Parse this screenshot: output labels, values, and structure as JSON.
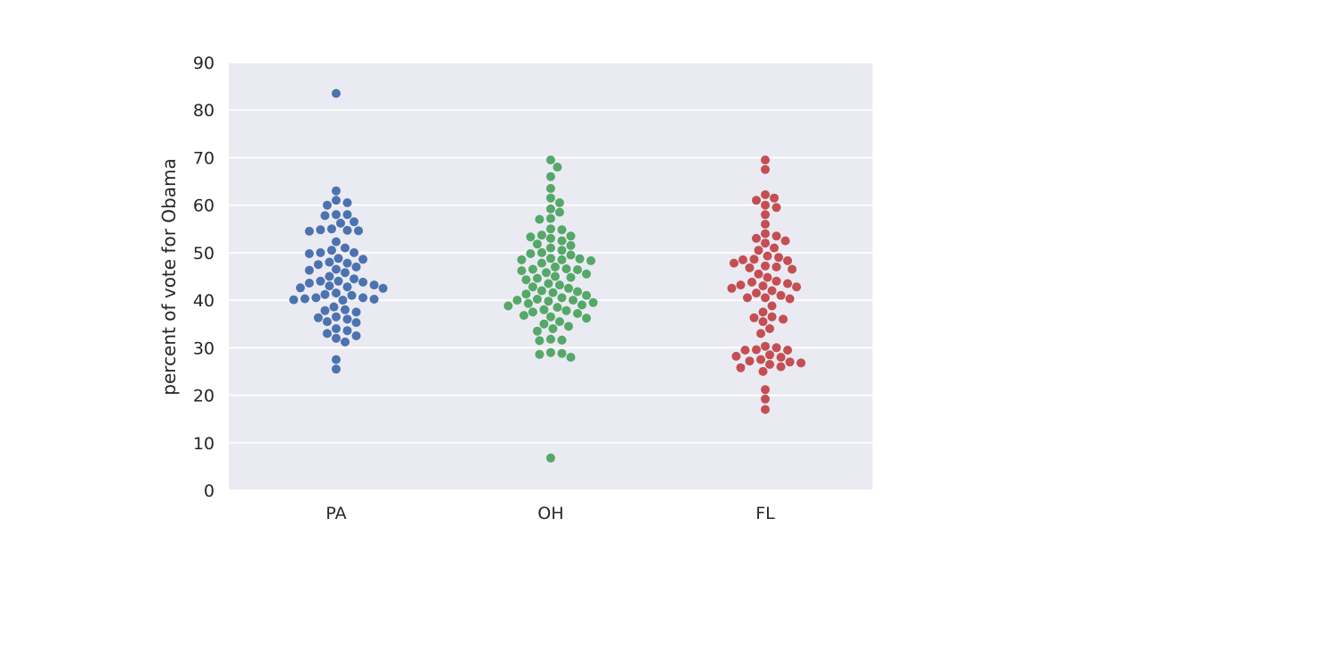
{
  "chart_data": {
    "type": "scatter",
    "subtype": "swarm",
    "title": "",
    "xlabel": "",
    "ylabel": "percent of vote for Obama",
    "categories": [
      "PA",
      "OH",
      "FL"
    ],
    "ylim": [
      0,
      90
    ],
    "yticks": [
      0,
      10,
      20,
      30,
      40,
      50,
      60,
      70,
      80,
      90
    ],
    "grid": true,
    "legend": "none",
    "colors": {
      "PA": "#4c72b0",
      "OH": "#55a868",
      "FL": "#c44e52"
    },
    "background": "#eaeaf2",
    "series": [
      {
        "category": "PA",
        "values": [
          83.5,
          63.0,
          61.0,
          60.5,
          60.0,
          58.0,
          58.0,
          57.8,
          56.5,
          56.2,
          55.0,
          54.8,
          54.7,
          54.6,
          54.5,
          52.3,
          51.0,
          50.5,
          50.0,
          50.0,
          49.8,
          48.8,
          48.6,
          48.0,
          47.8,
          47.5,
          47.0,
          46.5,
          46.3,
          45.8,
          45.0,
          44.5,
          44.0,
          44.0,
          43.8,
          43.6,
          43.2,
          43.0,
          42.8,
          42.6,
          42.5,
          41.5,
          41.2,
          41.0,
          40.5,
          40.5,
          40.3,
          40.2,
          40.1,
          40.0,
          38.6,
          38.0,
          37.8,
          37.5,
          36.5,
          36.3,
          36.0,
          35.5,
          35.3,
          34.0,
          33.6,
          33.0,
          32.5,
          32.0,
          31.2,
          27.5,
          25.5
        ]
      },
      {
        "category": "OH",
        "values": [
          69.5,
          68.0,
          66.0,
          63.5,
          61.5,
          60.5,
          59.2,
          58.5,
          57.2,
          57.0,
          55.0,
          54.8,
          53.7,
          53.5,
          53.3,
          53.0,
          52.5,
          51.8,
          51.5,
          51.0,
          50.5,
          50.0,
          49.8,
          49.5,
          48.8,
          48.7,
          48.5,
          48.5,
          48.3,
          47.8,
          47.0,
          46.6,
          46.5,
          46.4,
          46.2,
          45.8,
          45.5,
          45.0,
          44.8,
          44.6,
          44.3,
          43.5,
          43.2,
          42.8,
          42.5,
          42.0,
          41.8,
          41.6,
          41.3,
          41.0,
          40.5,
          40.2,
          40.0,
          40.0,
          39.8,
          39.5,
          39.3,
          39.0,
          38.8,
          38.5,
          38.0,
          37.8,
          37.5,
          37.2,
          36.8,
          36.5,
          36.2,
          35.5,
          35.0,
          34.5,
          34.0,
          33.5,
          31.8,
          31.6,
          31.5,
          29.0,
          28.8,
          28.6,
          28.0,
          6.8
        ]
      },
      {
        "category": "FL",
        "values": [
          69.5,
          67.5,
          62.2,
          61.5,
          61.0,
          60.0,
          59.5,
          58.0,
          56.0,
          54.0,
          53.5,
          53.0,
          52.5,
          52.0,
          51.0,
          50.5,
          49.3,
          49.0,
          48.6,
          48.5,
          48.3,
          47.8,
          47.2,
          47.0,
          46.8,
          46.5,
          45.5,
          44.8,
          44.0,
          43.8,
          43.5,
          43.2,
          43.0,
          42.8,
          42.5,
          42.0,
          41.5,
          41.0,
          40.5,
          40.5,
          40.3,
          38.8,
          37.5,
          36.5,
          36.3,
          36.0,
          35.5,
          34.0,
          33.0,
          30.3,
          30.0,
          29.6,
          29.5,
          29.5,
          28.5,
          28.2,
          28.0,
          27.5,
          27.2,
          27.0,
          26.8,
          26.5,
          26.0,
          25.8,
          25.0,
          21.2,
          19.2,
          17.0
        ]
      }
    ]
  }
}
